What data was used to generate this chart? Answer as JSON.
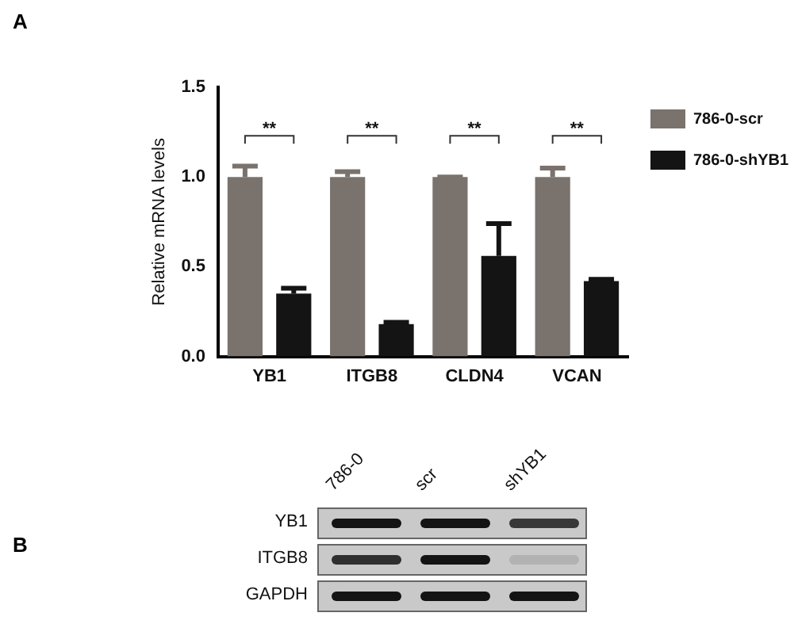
{
  "chart_data": {
    "type": "bar",
    "ylabel": "Relative mRNA levels",
    "categories": [
      "YB1",
      "ITGB8",
      "CLDN4",
      "VCAN"
    ],
    "series": [
      {
        "name": "786-0-scr",
        "color": "#7a726d",
        "values": [
          1.0,
          1.0,
          1.0,
          1.0
        ],
        "errors": [
          0.06,
          0.03,
          0,
          0.05
        ]
      },
      {
        "name": "786-0-shYB1",
        "color": "#141414",
        "values": [
          0.35,
          0.18,
          0.56,
          0.42
        ],
        "errors": [
          0.03,
          0.01,
          0.18,
          0.01
        ]
      }
    ],
    "ylim": [
      0,
      1.5
    ],
    "yticks": [
      {
        "value": 0,
        "label": "0.0"
      },
      {
        "value": 0.5,
        "label": "0.5"
      },
      {
        "value": 1,
        "label": "1.0"
      },
      {
        "value": 1.5,
        "label": "1.5"
      }
    ],
    "grid": false,
    "legend": "top right",
    "annotations": [
      "A",
      "B",
      "786-0",
      "scr",
      "shYB1",
      "YB1",
      "ITGB8",
      "GAPDH",
      "**",
      "**",
      "**",
      "**"
    ]
  }
}
